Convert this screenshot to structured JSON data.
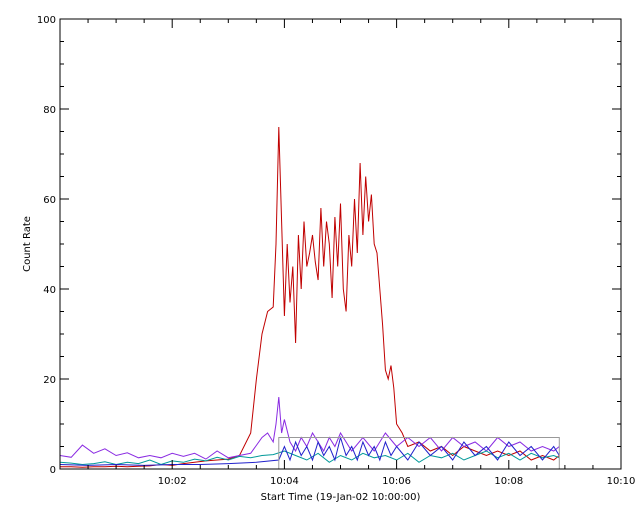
{
  "chart_data": {
    "type": "line",
    "xlabel": "Start Time (19-Jan-02 10:00:00)",
    "ylabel": "Count Rate",
    "xlim": [
      0,
      10
    ],
    "ylim": [
      0,
      100
    ],
    "x_ticks": [
      {
        "value": 2,
        "label": "10:02"
      },
      {
        "value": 4,
        "label": "10:04"
      },
      {
        "value": 6,
        "label": "10:06"
      },
      {
        "value": 8,
        "label": "10:08"
      },
      {
        "value": 10,
        "label": "10:10"
      }
    ],
    "y_ticks": [
      {
        "value": 0,
        "label": "0"
      },
      {
        "value": 20,
        "label": "20"
      },
      {
        "value": 40,
        "label": "40"
      },
      {
        "value": 60,
        "label": "60"
      },
      {
        "value": 80,
        "label": "80"
      },
      {
        "value": 100,
        "label": "100"
      }
    ],
    "grid": false,
    "colors": {
      "red": "#c00000",
      "purple": "#8a2be2",
      "teal": "#009999",
      "blue": "#2222cc",
      "box": "#999999"
    },
    "annotation_box": {
      "x": [
        3.9,
        8.9
      ],
      "y": [
        0,
        7
      ]
    },
    "series": [
      {
        "color": "#c00000",
        "x": [
          0.0,
          0.2,
          0.4,
          0.6,
          0.8,
          1.0,
          1.2,
          1.4,
          1.6,
          1.8,
          2.0,
          2.2,
          2.4,
          2.6,
          2.8,
          3.0,
          3.2,
          3.4,
          3.5,
          3.6,
          3.7,
          3.8,
          3.85,
          3.9,
          3.95,
          4.0,
          4.05,
          4.1,
          4.15,
          4.2,
          4.25,
          4.3,
          4.35,
          4.4,
          4.45,
          4.5,
          4.55,
          4.6,
          4.65,
          4.7,
          4.75,
          4.8,
          4.85,
          4.9,
          4.95,
          5.0,
          5.05,
          5.1,
          5.15,
          5.2,
          5.25,
          5.3,
          5.35,
          5.4,
          5.45,
          5.5,
          5.55,
          5.6,
          5.65,
          5.7,
          5.75,
          5.8,
          5.85,
          5.9,
          5.95,
          6.0,
          6.1,
          6.2,
          6.4,
          6.6,
          6.8,
          7.0,
          7.2,
          7.4,
          7.6,
          7.8,
          8.0,
          8.2,
          8.4,
          8.6,
          8.8,
          8.9
        ],
        "y": [
          0.5,
          0.5,
          0.4,
          0.5,
          0.5,
          0.6,
          0.5,
          0.6,
          0.7,
          1.0,
          0.8,
          1.2,
          1.5,
          1.8,
          2.0,
          2.2,
          3.0,
          8.0,
          20.0,
          30.0,
          35.0,
          36.0,
          50.0,
          76.0,
          55.0,
          34.0,
          50.0,
          37.0,
          45.0,
          28.0,
          52.0,
          40.0,
          55.0,
          45.0,
          48.0,
          52.0,
          46.0,
          42.0,
          58.0,
          45.0,
          55.0,
          50.0,
          38.0,
          56.0,
          45.0,
          59.0,
          40.0,
          35.0,
          52.0,
          45.0,
          60.0,
          48.0,
          68.0,
          52.0,
          65.0,
          55.0,
          61.0,
          50.0,
          48.0,
          40.0,
          32.0,
          22.0,
          20.0,
          23.0,
          18.0,
          10.0,
          8.0,
          5.0,
          6.0,
          4.0,
          5.0,
          3.0,
          5.0,
          4.0,
          3.0,
          4.0,
          3.0,
          4.0,
          2.0,
          3.0,
          2.0,
          3.0
        ]
      },
      {
        "color": "#8a2be2",
        "x": [
          0.0,
          0.2,
          0.4,
          0.6,
          0.8,
          1.0,
          1.2,
          1.4,
          1.6,
          1.8,
          2.0,
          2.2,
          2.4,
          2.6,
          2.8,
          3.0,
          3.2,
          3.4,
          3.6,
          3.7,
          3.8,
          3.85,
          3.9,
          3.95,
          4.0,
          4.1,
          4.2,
          4.3,
          4.4,
          4.5,
          4.6,
          4.7,
          4.8,
          4.9,
          5.0,
          5.2,
          5.4,
          5.6,
          5.8,
          6.0,
          6.2,
          6.4,
          6.6,
          6.8,
          7.0,
          7.2,
          7.4,
          7.6,
          7.8,
          8.0,
          8.2,
          8.4,
          8.6,
          8.8,
          8.9
        ],
        "y": [
          3.0,
          2.6,
          5.3,
          3.5,
          4.5,
          3.0,
          3.6,
          2.5,
          3.0,
          2.5,
          3.5,
          2.8,
          3.5,
          2.2,
          4.0,
          2.5,
          3.0,
          3.5,
          7.0,
          8.0,
          6.0,
          10.0,
          16.0,
          8.0,
          11.0,
          6.0,
          4.0,
          7.0,
          5.0,
          8.0,
          6.0,
          4.0,
          7.0,
          5.0,
          8.0,
          4.0,
          7.0,
          4.0,
          8.0,
          5.0,
          7.0,
          5.0,
          7.0,
          4.0,
          7.0,
          5.0,
          6.0,
          4.0,
          7.0,
          5.0,
          6.0,
          4.0,
          5.0,
          4.0,
          5.0
        ]
      },
      {
        "color": "#009999",
        "x": [
          0.0,
          0.2,
          0.4,
          0.6,
          0.8,
          1.0,
          1.2,
          1.4,
          1.6,
          1.8,
          2.0,
          2.2,
          2.4,
          2.6,
          2.8,
          3.0,
          3.2,
          3.4,
          3.6,
          3.8,
          4.0,
          4.2,
          4.4,
          4.6,
          4.8,
          5.0,
          5.2,
          5.4,
          5.6,
          5.8,
          6.0,
          6.2,
          6.4,
          6.6,
          6.8,
          7.0,
          7.2,
          7.4,
          7.6,
          7.8,
          8.0,
          8.2,
          8.4,
          8.6,
          8.8,
          8.9
        ],
        "y": [
          1.5,
          1.3,
          1.0,
          1.2,
          1.6,
          1.0,
          1.5,
          1.2,
          2.0,
          1.0,
          1.8,
          1.5,
          2.2,
          1.8,
          2.6,
          2.0,
          2.8,
          2.5,
          3.0,
          3.2,
          4.0,
          3.0,
          2.0,
          3.5,
          1.5,
          3.0,
          2.0,
          3.5,
          2.5,
          3.0,
          2.0,
          3.5,
          1.5,
          3.0,
          2.5,
          3.5,
          2.0,
          3.0,
          4.0,
          2.5,
          3.5,
          2.0,
          3.5,
          2.5,
          3.0,
          2.5
        ]
      },
      {
        "color": "#2222cc",
        "x": [
          0.0,
          0.5,
          1.0,
          1.5,
          2.0,
          2.5,
          3.0,
          3.5,
          3.9,
          4.0,
          4.1,
          4.2,
          4.3,
          4.4,
          4.5,
          4.6,
          4.7,
          4.8,
          4.9,
          5.0,
          5.1,
          5.2,
          5.3,
          5.4,
          5.5,
          5.6,
          5.7,
          5.8,
          5.9,
          6.0,
          6.2,
          6.4,
          6.6,
          6.8,
          7.0,
          7.2,
          7.4,
          7.6,
          7.8,
          8.0,
          8.2,
          8.4,
          8.6,
          8.8,
          8.9
        ],
        "y": [
          1.0,
          0.8,
          1.0,
          0.8,
          1.0,
          1.0,
          1.2,
          1.5,
          2.0,
          5.0,
          2.0,
          6.0,
          3.0,
          5.0,
          2.0,
          6.0,
          3.0,
          5.0,
          2.0,
          7.0,
          3.0,
          5.0,
          2.0,
          6.0,
          3.0,
          5.0,
          2.0,
          6.0,
          3.0,
          5.0,
          2.0,
          6.0,
          3.0,
          5.0,
          2.0,
          6.0,
          3.0,
          5.0,
          2.0,
          6.0,
          3.0,
          5.0,
          2.0,
          5.0,
          3.0
        ]
      }
    ]
  }
}
